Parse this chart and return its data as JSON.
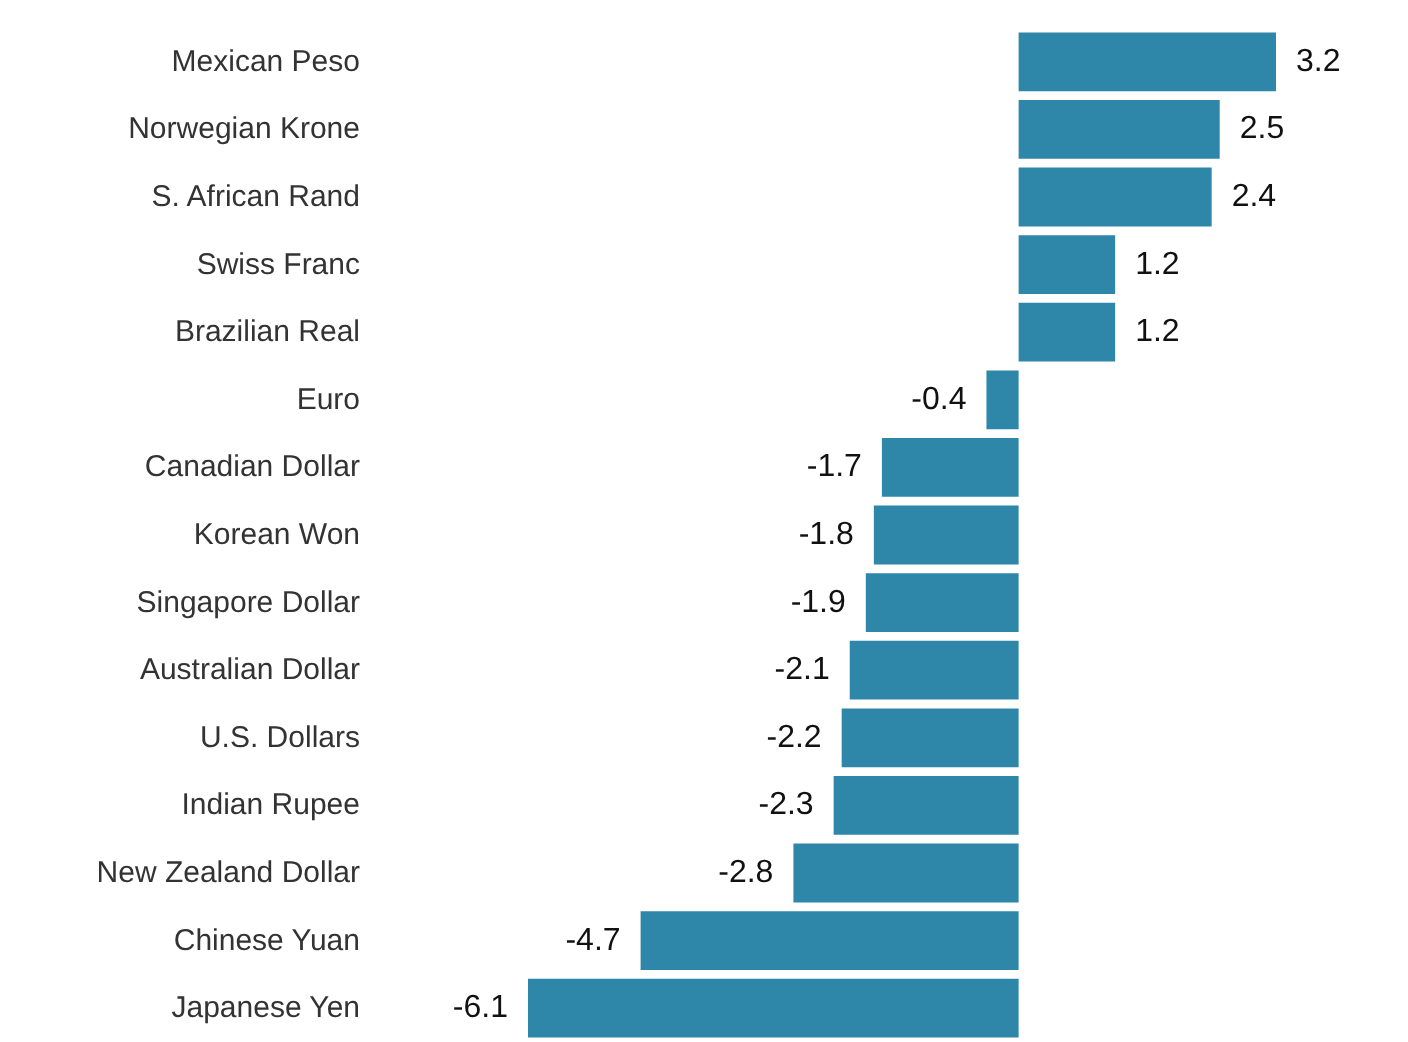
{
  "chart_data": {
    "type": "bar",
    "orientation": "horizontal",
    "categories": [
      "Mexican Peso",
      "Norwegian Krone",
      "S. African Rand",
      "Swiss Franc",
      "Brazilian Real",
      "Euro",
      "Canadian Dollar",
      "Korean Won",
      "Singapore Dollar",
      "Australian Dollar",
      "U.S. Dollars",
      "Indian Rupee",
      "New Zealand Dollar",
      "Chinese Yuan",
      "Japanese Yen"
    ],
    "values": [
      3.2,
      2.5,
      2.4,
      1.2,
      1.2,
      -0.4,
      -1.7,
      -1.8,
      -1.9,
      -2.1,
      -2.2,
      -2.3,
      -2.8,
      -4.7,
      -6.1
    ],
    "color": "#2e86a8",
    "data_labels": true
  }
}
